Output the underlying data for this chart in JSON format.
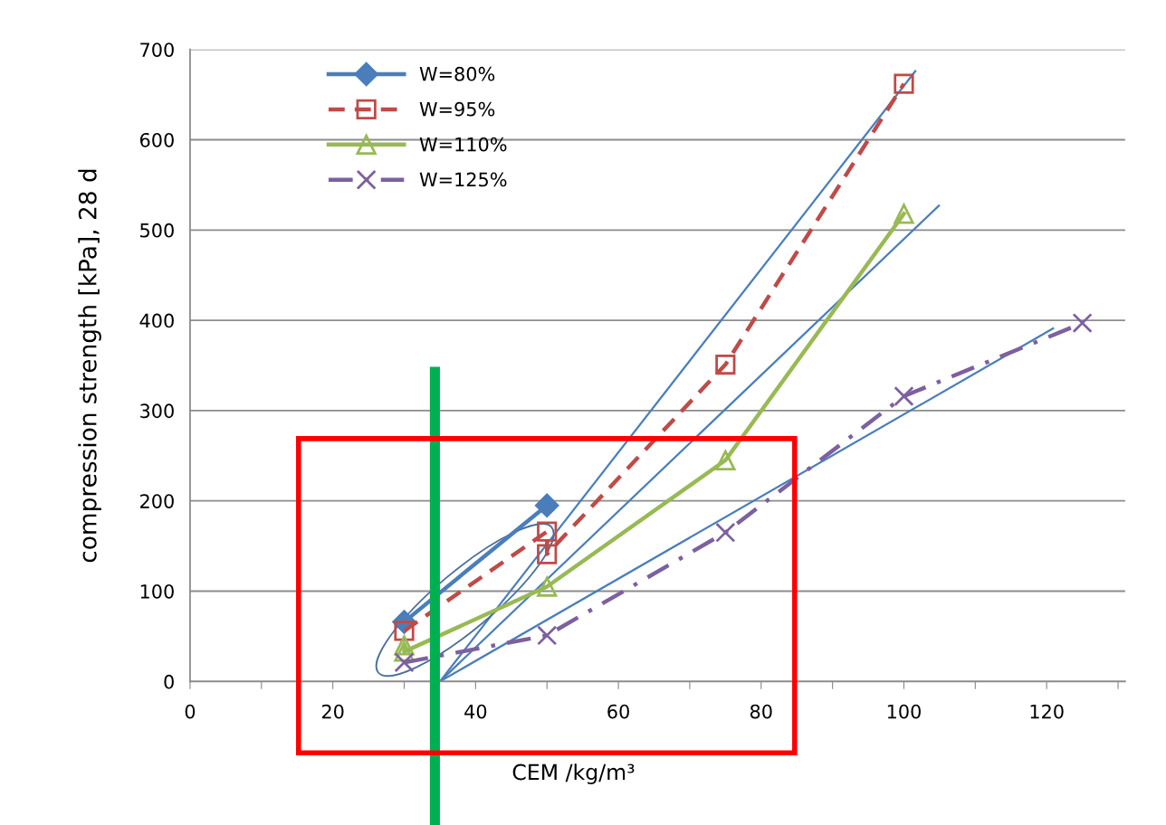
{
  "chart_data": {
    "type": "line",
    "xlabel": "CEM /kg/m³",
    "ylabel": "compression strength [kPa], 28 d",
    "xlim": [
      0,
      131
    ],
    "ylim": [
      0,
      700
    ],
    "xticks": [
      0,
      {
        "value": 10,
        "label": null
      },
      20,
      {
        "value": 30,
        "label": null
      },
      40,
      {
        "value": 50,
        "label": null
      },
      60,
      {
        "value": 70,
        "label": null
      },
      80,
      {
        "value": 90,
        "label": null
      },
      100,
      {
        "value": 110,
        "label": null
      },
      120,
      {
        "value": 130,
        "label": null
      }
    ],
    "yticks": [
      0,
      100,
      200,
      300,
      400,
      500,
      600,
      700
    ],
    "grid": "y",
    "legend": "top left",
    "series": [
      {
        "name": "W=80%",
        "color": "#4a7ebb",
        "marker": "diamond",
        "line_style": "solid",
        "x": [
          30,
          50
        ],
        "values": [
          66,
          195
        ]
      },
      {
        "name": "W=95%",
        "color": "#be4b48",
        "marker": "square",
        "line_style": "dashed",
        "x": [
          30,
          50,
          50,
          75,
          100
        ],
        "values": [
          56,
          166,
          141,
          351,
          662
        ]
      },
      {
        "name": "W=110%",
        "color": "#98b954",
        "marker": "triangle",
        "line_style": "solid",
        "x": [
          30,
          30,
          50,
          75,
          100
        ],
        "values": [
          40,
          33,
          105,
          245,
          518
        ]
      },
      {
        "name": "W=125%",
        "color": "#7d60a0",
        "marker": "cross",
        "line_style": "dashdot",
        "x": [
          30,
          50,
          75,
          100,
          125
        ],
        "values": [
          21,
          51,
          165,
          316,
          397
        ]
      },
      {
        "color": "#4a7ebb",
        "marker": "none",
        "line_style": "solid",
        "x": [
          35,
          101.6
        ],
        "values": [
          0,
          676
        ]
      },
      {
        "color": "#4a7ebb",
        "marker": "none",
        "line_style": "solid",
        "x": [
          35,
          104.9
        ],
        "values": [
          0,
          527
        ]
      },
      {
        "color": "#4a7ebb",
        "marker": "none",
        "line_style": "solid",
        "x": [
          35,
          120.9
        ],
        "values": [
          0,
          391
        ]
      }
    ],
    "ref_lines": [
      {
        "axis": "x",
        "value": 34.3,
        "color": "#00b050"
      }
    ]
  }
}
